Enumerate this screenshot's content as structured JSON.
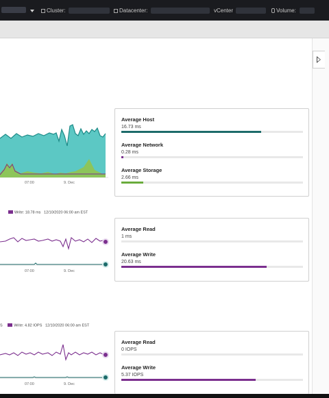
{
  "context_bar": {
    "cluster_label": "Cluster:",
    "datacenter_label": "Datacenter:",
    "vcenter_label": "vCenter",
    "volume_label": "Volume:"
  },
  "colors": {
    "host": "#1d8a87",
    "host_area": "#5cc8c4",
    "network": "#7b2f8e",
    "storage": "#6aab3c",
    "storage_area": "#8dc55a",
    "read": "#1d6b6a",
    "write": "#7b2f8e"
  },
  "latency_chart": {
    "x_ticks": [
      "07:00",
      "9. Dec"
    ],
    "stats": [
      {
        "title": "Average Host",
        "value": "16.73 ms",
        "fraction": 0.77,
        "color": "#1d6b6a"
      },
      {
        "title": "Average Network",
        "value": "0.28 ms",
        "fraction": 0.01,
        "color": "#7b2f8e"
      },
      {
        "title": "Average Storage",
        "value": "2.66 ms",
        "fraction": 0.12,
        "color": "#6aab3c"
      }
    ]
  },
  "rw_latency_chart": {
    "legend": {
      "write": "Write: 18.78 ms",
      "timestamp": "12/10/2020 06:00 am EST"
    },
    "x_ticks": [
      "07:00",
      "9. Dec"
    ],
    "stats": [
      {
        "title": "Average Read",
        "value": "1 ms",
        "fraction": 0.0,
        "color": "#1d6b6a"
      },
      {
        "title": "Average Write",
        "value": "20.63 ms",
        "fraction": 0.8,
        "color": "#7b2f8e"
      }
    ]
  },
  "iops_chart": {
    "legend": {
      "prefix": "S",
      "write": "Write: 4.82 IOPS",
      "timestamp": "12/10/2020 06:00 am EST"
    },
    "x_ticks": [
      "07:00",
      "9. Dec"
    ],
    "stats": [
      {
        "title": "Average Read",
        "value": "0 IOPS",
        "fraction": 0.0,
        "color": "#1d6b6a"
      },
      {
        "title": "Average Write",
        "value": "5.37 IOPS",
        "fraction": 0.74,
        "color": "#7b2f8e"
      }
    ]
  }
}
